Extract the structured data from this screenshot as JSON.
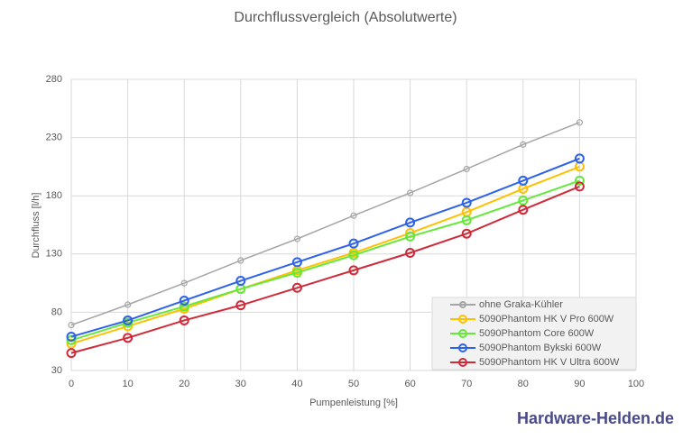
{
  "chart_data": {
    "type": "line",
    "title": "Durchflussvergleich (Absolutwerte)",
    "x_label": "Pumpenleistung [%]",
    "y_label": "Durchfluss [l/h]",
    "x": [
      0,
      10,
      20,
      30,
      40,
      50,
      60,
      70,
      80,
      90
    ],
    "xlim": [
      0,
      100
    ],
    "xticks": [
      0,
      10,
      20,
      30,
      40,
      50,
      60,
      70,
      80,
      90,
      100
    ],
    "ylim": [
      30,
      280
    ],
    "yticks": [
      30,
      80,
      130,
      180,
      230,
      280
    ],
    "grid": true,
    "legend": "lower right",
    "series": [
      {
        "name": "ohne Graka-Kühler",
        "color": "#a5a5a5",
        "values": [
          69,
          86.5,
          105,
          124.5,
          143,
          163,
          182.5,
          203,
          224,
          243
        ]
      },
      {
        "name": "5090Phantom HK V Pro 600W",
        "color": "#ffc000",
        "values": [
          53,
          68,
          83,
          100,
          116,
          131,
          148,
          166,
          186,
          205
        ]
      },
      {
        "name": "5090Phantom Core 600W",
        "color": "#66e83a",
        "values": [
          56,
          71,
          85,
          100,
          114,
          129,
          145,
          159,
          176,
          193
        ]
      },
      {
        "name": "5090Phantom Bykski 600W",
        "color": "#2e62e8",
        "values": [
          59,
          73,
          90,
          107,
          123,
          139,
          157,
          174,
          193,
          212
        ]
      },
      {
        "name": "5090Phantom HK V Ultra 600W",
        "color": "#d02b3a",
        "values": [
          45,
          58,
          73,
          86,
          101,
          116,
          131,
          147.5,
          168,
          188
        ]
      }
    ],
    "watermark": "Hardware-Helden.de"
  }
}
